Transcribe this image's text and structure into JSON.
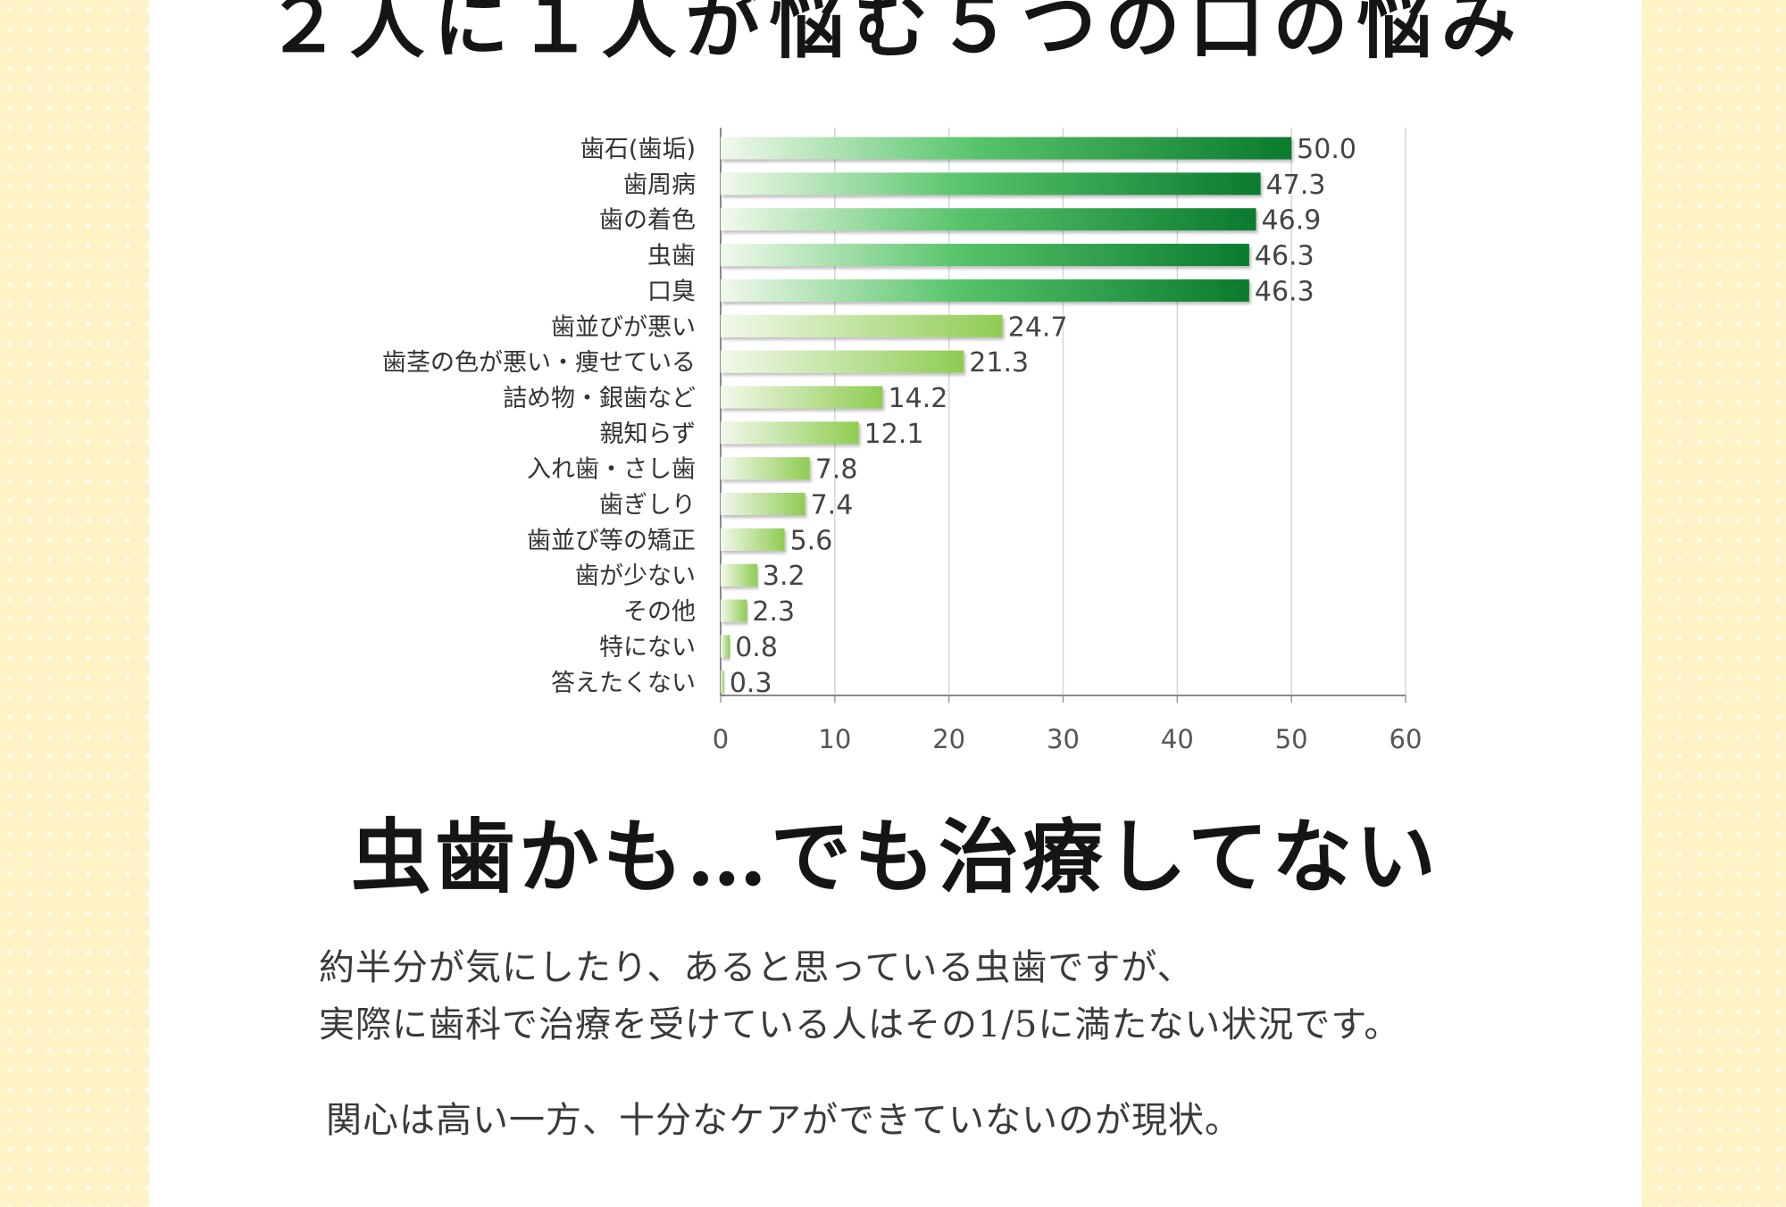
{
  "page": {
    "title": "２人に１人が悩む５つの口の悩み",
    "subtitle": "虫歯かも…でも治療してない",
    "paragraph_1": [
      "約半分が気にしたり、あると思っている虫歯ですが、",
      "実際に歯科で治療を受けている人はその1/5に満たない状況です。"
    ],
    "paragraph_2": "関心は高い一方、十分なケアができていないのが現状。"
  },
  "colors": {
    "background": "#fdf3c6",
    "bar_dark": "#0a7a2e",
    "bar_light": "#8fcc52",
    "bar_start": "#f2f9ec"
  },
  "chart_data": {
    "type": "bar",
    "orientation": "horizontal",
    "categories": [
      "歯石(歯垢)",
      "歯周病",
      "歯の着色",
      "虫歯",
      "口臭",
      "歯並びが悪い",
      "歯茎の色が悪い・痩せている",
      "詰め物・銀歯など",
      "親知らず",
      "入れ歯・さし歯",
      "歯ぎしり",
      "歯並び等の矯正",
      "歯が少ない",
      "その他",
      "特にない",
      "答えたくない"
    ],
    "values": [
      50.0,
      47.3,
      46.9,
      46.3,
      46.3,
      24.7,
      21.3,
      14.2,
      12.1,
      7.8,
      7.4,
      5.6,
      3.2,
      2.3,
      0.8,
      0.3
    ],
    "value_labels": [
      "50.0",
      "47.3",
      "46.9",
      "46.3",
      "46.3",
      "24.7",
      "21.3",
      "14.2",
      "12.1",
      "7.8",
      "7.4",
      "5.6",
      "3.2",
      "2.3",
      "0.8",
      "0.3"
    ],
    "highlighted_count": 5,
    "xlim": [
      0,
      60
    ],
    "xticks": [
      0,
      10,
      20,
      30,
      40,
      50,
      60
    ],
    "grid": true,
    "legend": "none"
  }
}
